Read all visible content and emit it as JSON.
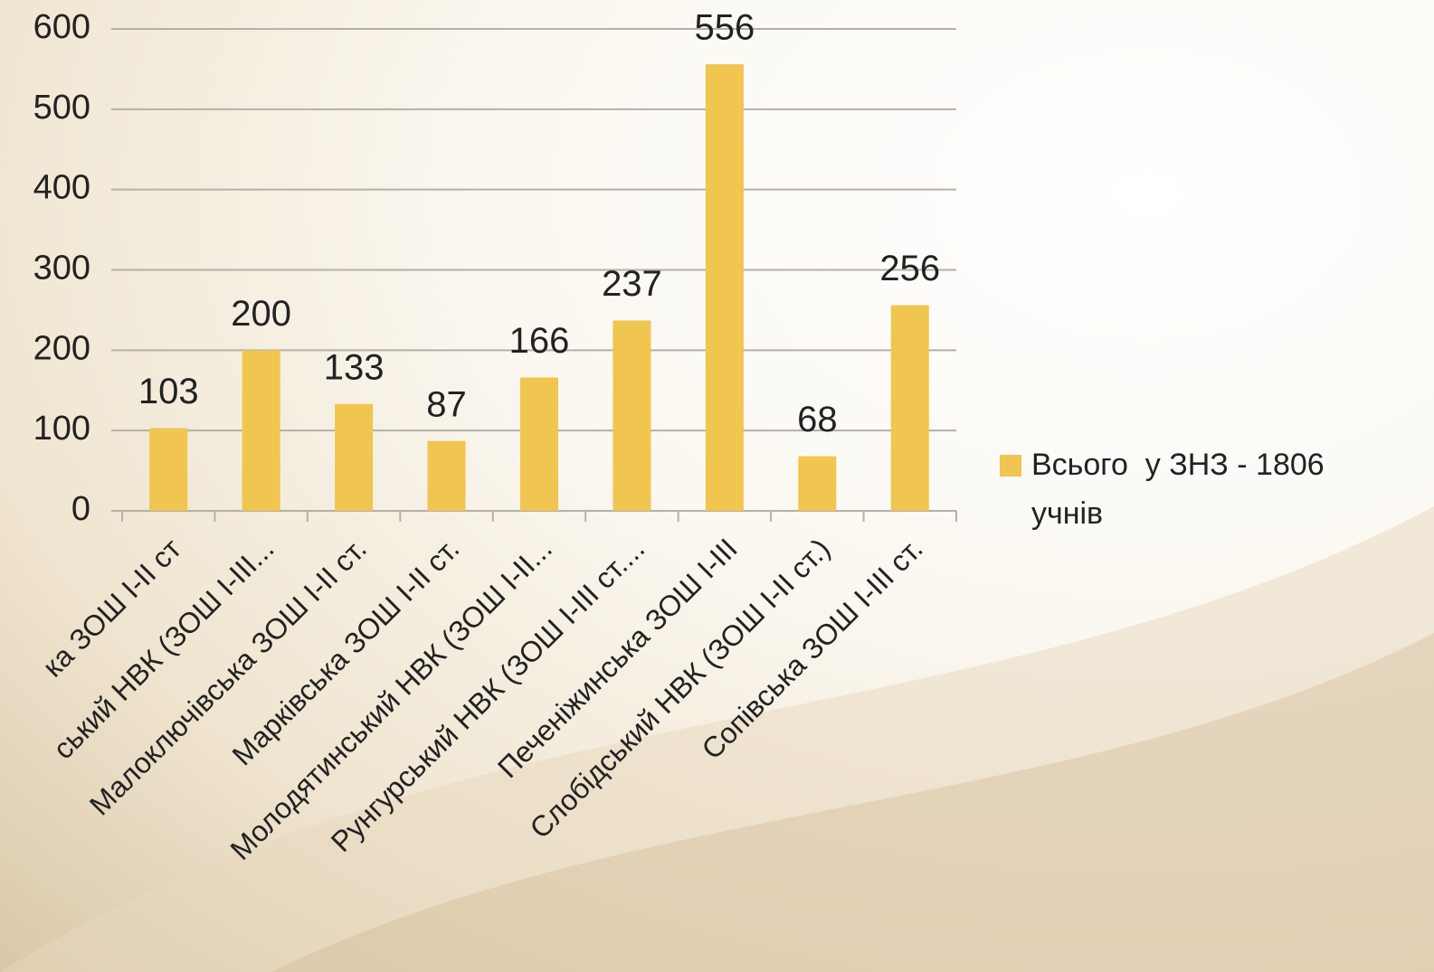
{
  "chart_data": {
    "type": "bar",
    "categories": [
      "ка ЗОШ І-ІІ ст",
      "ський НВК (ЗОШ І-ІІІ...",
      "Малоключівська ЗОШ І-ІІ ст.",
      "Марківська ЗОШ І-ІІ ст.",
      "Молодятинський НВК (ЗОШ І-ІІ...",
      "Рунгурський НВК (ЗОШ І-ІІІ ст....",
      "Печеніжинська ЗОШ І-ІІІ",
      "Слобідський НВК (ЗОШ І-ІІ ст.)",
      "Сопівська ЗОШ І-ІІІ ст."
    ],
    "series": [
      {
        "name": "Всього  у ЗНЗ - 1806 учнів",
        "color": "#f0c550",
        "values": [
          103,
          200,
          133,
          87,
          166,
          237,
          556,
          68,
          256
        ]
      }
    ],
    "ylim": [
      0,
      600
    ],
    "yticks": [
      0,
      100,
      200,
      300,
      400,
      500,
      600
    ],
    "grid": true,
    "legend": "right"
  }
}
